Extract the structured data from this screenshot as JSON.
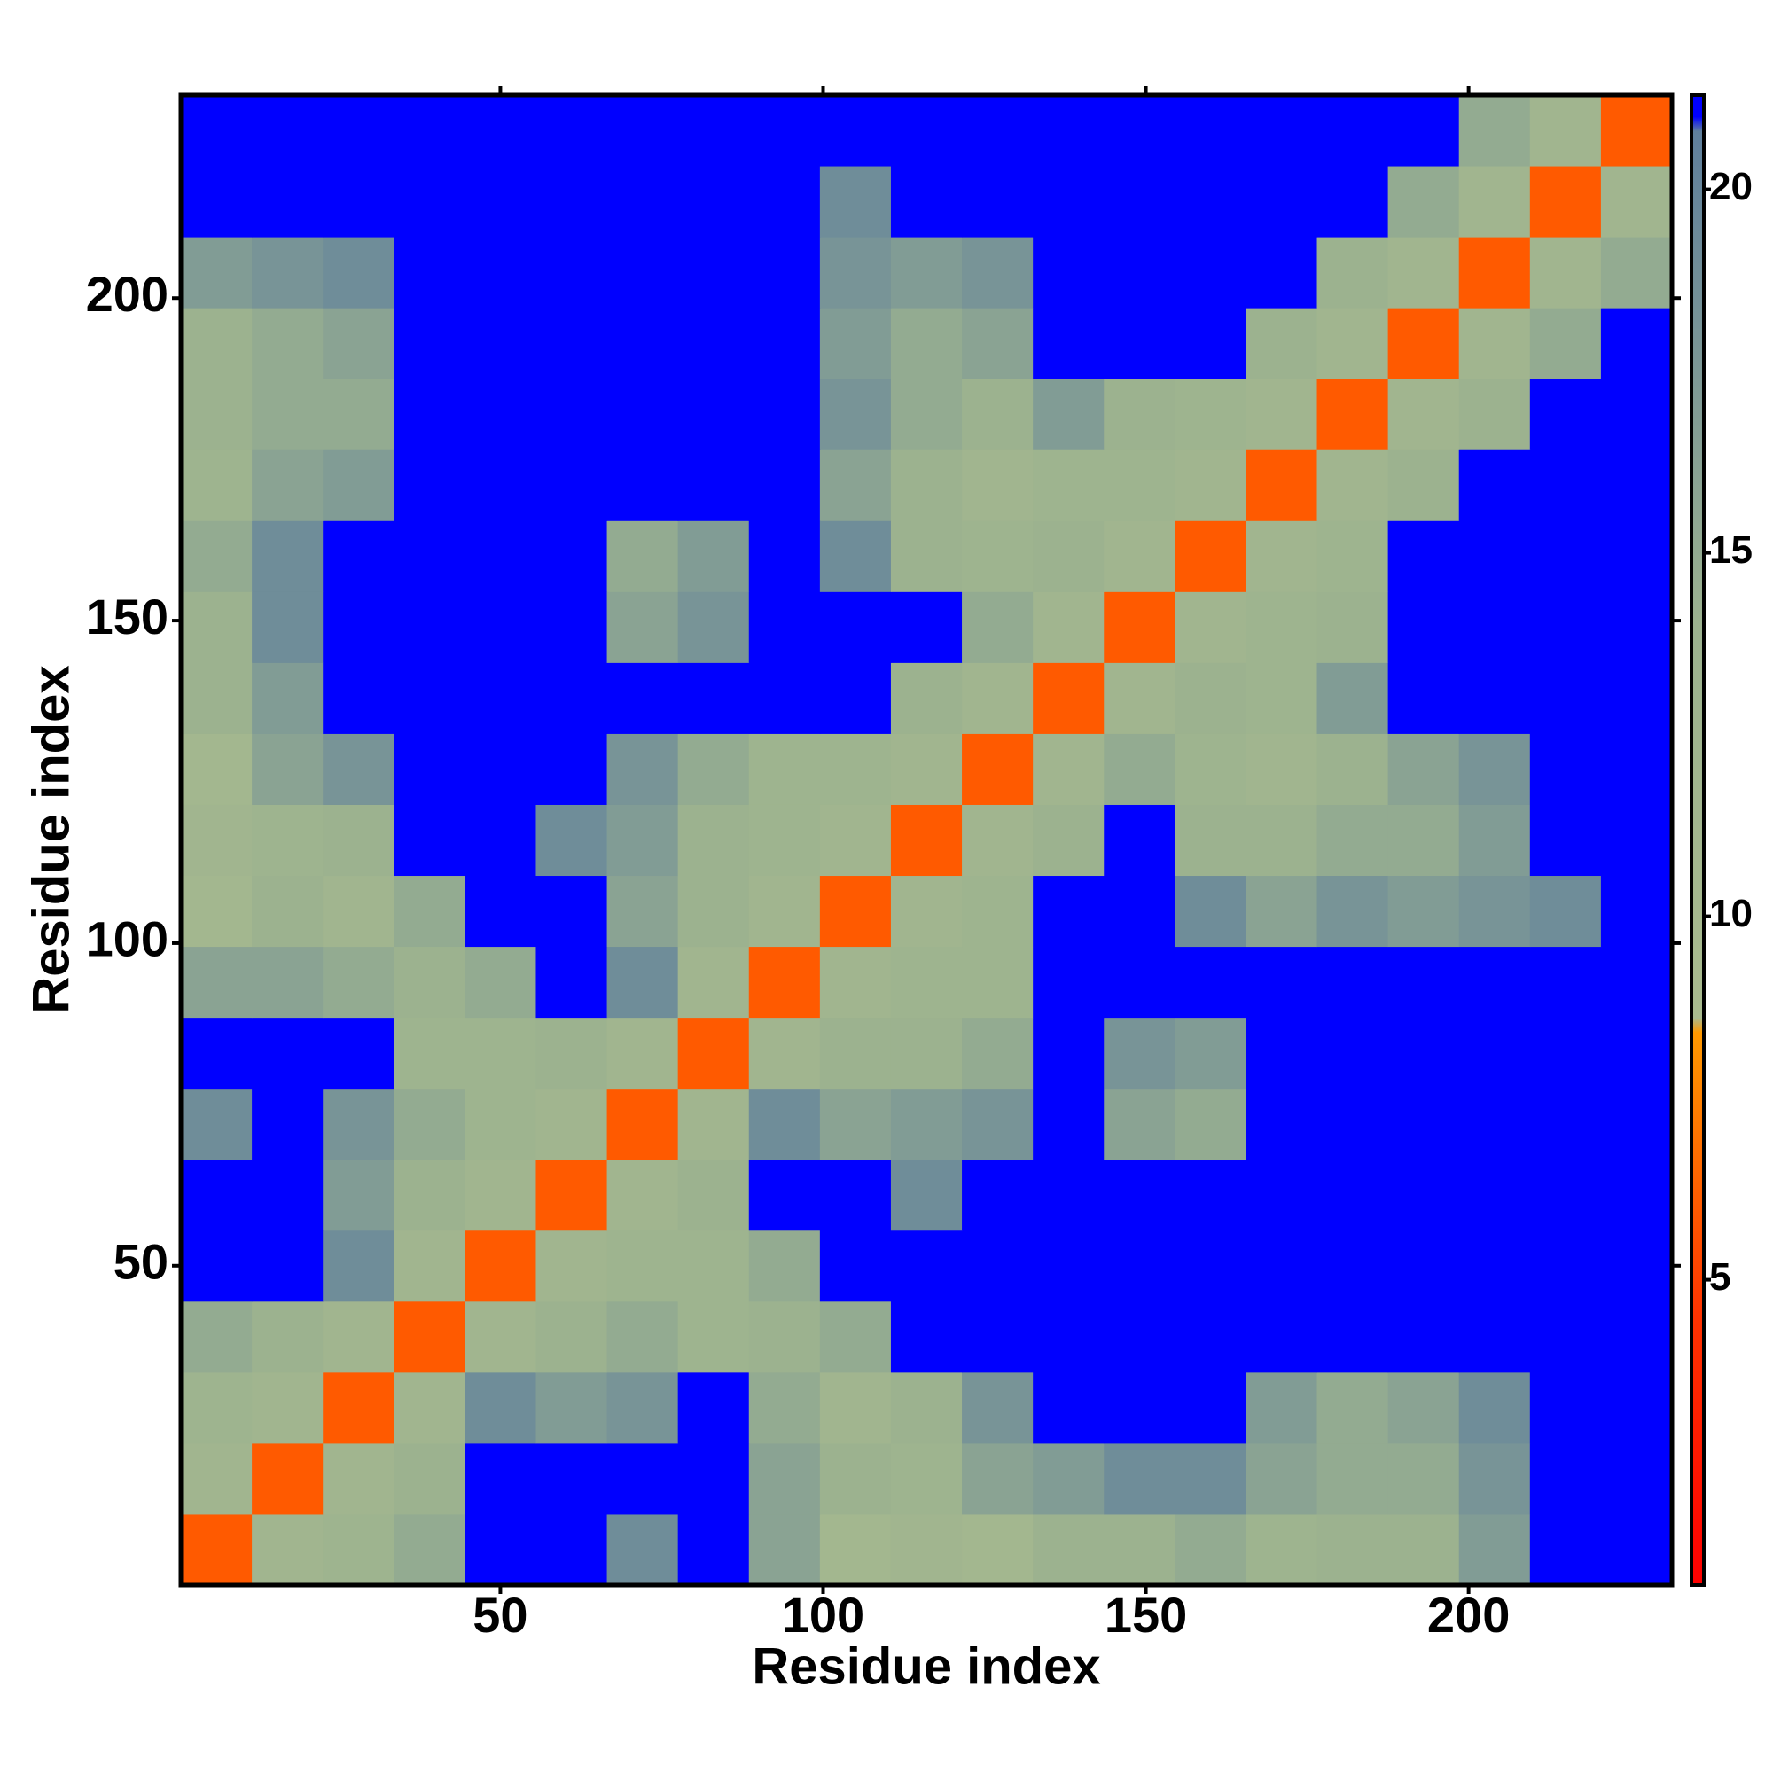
{
  "chart_data": {
    "type": "heatmap",
    "xlabel": "Residue index",
    "ylabel": "Residue index",
    "xbins": [
      0.5,
      11.5,
      22.5,
      33.5,
      44.5,
      55.5,
      66.5,
      77.5,
      88.5,
      99.5,
      110.5,
      121.5,
      132.5,
      143.5,
      154.5,
      165.5,
      176.5,
      187.5,
      198.5,
      209.5,
      220.5,
      231.5
    ],
    "ybins": [
      0.5,
      11.5,
      22.5,
      33.5,
      44.5,
      55.5,
      66.5,
      77.5,
      88.5,
      99.5,
      110.5,
      121.5,
      132.5,
      143.5,
      154.5,
      165.5,
      176.5,
      187.5,
      198.5,
      209.5,
      220.5,
      231.5
    ],
    "xlim": [
      0.5,
      231.5
    ],
    "ylim": [
      0.5,
      231.5
    ],
    "xticks": [
      50,
      100,
      150,
      200
    ],
    "yticks": [
      50,
      100,
      150,
      200
    ],
    "clim": [
      0.8,
      21.3
    ],
    "cticks": [
      5,
      10,
      15,
      20
    ],
    "colorscale": [
      [
        0.8,
        "#ff0000"
      ],
      [
        4.5,
        "#ff3300"
      ],
      [
        8.4,
        "#ff9900"
      ],
      [
        8.6,
        "#a9bb8f"
      ],
      [
        14,
        "#9cb28f"
      ],
      [
        20.8,
        "#5f7f9c"
      ],
      [
        21,
        "#0000ff"
      ],
      [
        21.3,
        "#0000ff"
      ]
    ],
    "z": [
      [
        6,
        12,
        13,
        15,
        21,
        21,
        19,
        21,
        16,
        11,
        12,
        11,
        14,
        14,
        15,
        13,
        14,
        14,
        17,
        21,
        21
      ],
      [
        12,
        6,
        12,
        14,
        21,
        21,
        21,
        21,
        16,
        14,
        13,
        16,
        17,
        19,
        19,
        16,
        15,
        15,
        18,
        21,
        21
      ],
      [
        13,
        12,
        6,
        12,
        19,
        17,
        18,
        21,
        15,
        12,
        14,
        18,
        21,
        21,
        21,
        17,
        15,
        16,
        19,
        21,
        21
      ],
      [
        15,
        14,
        12,
        6,
        12,
        14,
        15,
        13,
        14,
        15,
        21,
        21,
        21,
        21,
        21,
        21,
        21,
        21,
        21,
        21,
        21
      ],
      [
        21,
        21,
        19,
        12,
        6,
        12,
        13,
        13,
        15,
        21,
        21,
        21,
        21,
        21,
        21,
        21,
        21,
        21,
        21,
        21,
        21
      ],
      [
        21,
        21,
        17,
        14,
        12,
        6,
        12,
        14,
        21,
        21,
        19,
        21,
        21,
        21,
        21,
        21,
        21,
        21,
        21,
        21,
        21
      ],
      [
        19,
        21,
        18,
        15,
        13,
        12,
        6,
        12,
        19,
        16,
        17,
        18,
        21,
        16,
        15,
        21,
        21,
        21,
        21,
        21,
        21
      ],
      [
        21,
        21,
        21,
        13,
        13,
        14,
        12,
        6,
        12,
        14,
        14,
        15,
        21,
        18,
        17,
        21,
        21,
        21,
        21,
        21,
        21
      ],
      [
        16,
        16,
        15,
        14,
        15,
        21,
        19,
        12,
        6,
        12,
        13,
        13,
        21,
        21,
        21,
        21,
        21,
        21,
        21,
        21,
        21
      ],
      [
        11,
        14,
        12,
        15,
        21,
        21,
        16,
        14,
        12,
        6,
        12,
        13,
        21,
        21,
        19,
        16,
        18,
        17,
        18,
        19,
        21
      ],
      [
        12,
        13,
        14,
        21,
        21,
        19,
        17,
        14,
        13,
        12,
        6,
        12,
        14,
        21,
        14,
        14,
        15,
        15,
        17,
        21,
        21
      ],
      [
        11,
        16,
        18,
        21,
        21,
        21,
        18,
        15,
        13,
        13,
        12,
        6,
        12,
        15,
        13,
        12,
        14,
        16,
        18,
        21,
        21
      ],
      [
        14,
        17,
        21,
        21,
        21,
        21,
        21,
        21,
        21,
        21,
        14,
        12,
        6,
        12,
        14,
        13,
        17,
        21,
        21,
        21,
        21
      ],
      [
        14,
        19,
        21,
        21,
        21,
        21,
        16,
        18,
        21,
        21,
        21,
        15,
        12,
        6,
        12,
        13,
        14,
        21,
        21,
        21,
        21
      ],
      [
        15,
        19,
        21,
        21,
        21,
        21,
        15,
        17,
        21,
        19,
        14,
        13,
        14,
        12,
        6,
        12,
        13,
        21,
        21,
        21,
        21
      ],
      [
        13,
        16,
        17,
        21,
        21,
        21,
        21,
        21,
        21,
        16,
        14,
        12,
        13,
        13,
        12,
        6,
        12,
        14,
        21,
        21,
        21
      ],
      [
        14,
        15,
        15,
        21,
        21,
        21,
        21,
        21,
        21,
        18,
        15,
        14,
        17,
        14,
        13,
        12,
        6,
        12,
        14,
        21,
        21
      ],
      [
        14,
        15,
        16,
        21,
        21,
        21,
        21,
        21,
        21,
        17,
        15,
        16,
        21,
        21,
        21,
        14,
        12,
        6,
        12,
        15,
        21
      ],
      [
        17,
        18,
        19,
        21,
        21,
        21,
        21,
        21,
        21,
        18,
        17,
        18,
        21,
        21,
        21,
        21,
        14,
        12,
        6,
        12,
        15
      ],
      [
        21,
        21,
        21,
        21,
        21,
        21,
        21,
        21,
        21,
        19,
        21,
        21,
        21,
        21,
        21,
        21,
        21,
        15,
        12,
        6,
        12
      ],
      [
        21,
        21,
        21,
        21,
        21,
        21,
        21,
        21,
        21,
        21,
        21,
        21,
        21,
        21,
        21,
        21,
        21,
        21,
        15,
        12,
        6
      ]
    ]
  }
}
